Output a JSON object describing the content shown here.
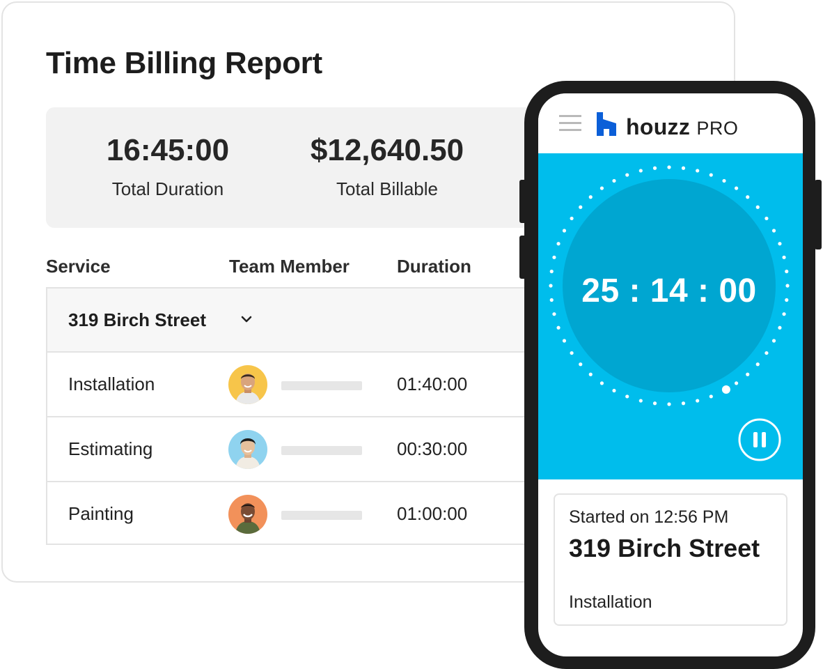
{
  "report": {
    "title": "Time Billing Report",
    "summary": {
      "total_duration": "16:45:00",
      "total_duration_label": "Total Duration",
      "total_billable": "$12,640.50",
      "total_billable_label": "Total Billable"
    },
    "columns": [
      "Service",
      "Team Member",
      "Duration"
    ],
    "group": {
      "label": "319 Birch Street",
      "icon": "chevron-down-icon"
    },
    "rows": [
      {
        "service": "Installation",
        "duration": "01:40:00",
        "avatar_bg": "#f7c54a"
      },
      {
        "service": "Estimating",
        "duration": "00:30:00",
        "avatar_bg": "#8fd3ef"
      },
      {
        "service": "Painting",
        "duration": "01:00:00",
        "avatar_bg": "#f2915a"
      }
    ]
  },
  "phone": {
    "brand": "houzz",
    "brand_suffix": "PRO",
    "timer": "25 : 14 : 00",
    "progress_fraction": 0.42,
    "card": {
      "started": "Started on 12:56 PM",
      "address": "319 Birch Street",
      "service": "Installation"
    }
  },
  "colors": {
    "brand_blue": "#0b5fd8",
    "timer_panel": "#00bdec",
    "dial_inner": "#00a6d1"
  }
}
